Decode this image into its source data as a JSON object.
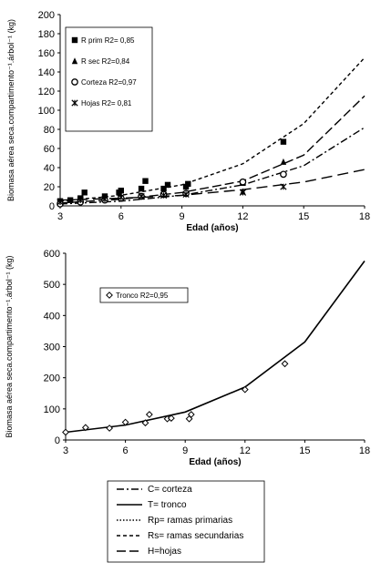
{
  "chart_data": [
    {
      "type": "scatter",
      "xlabel": "Edad (años)",
      "ylabel": "Biomasa aérea seca.compartimento⁻¹.árbol⁻¹ (kg)",
      "xlim": [
        3,
        18
      ],
      "ylim": [
        0,
        200
      ],
      "xticks": [
        "3",
        "6",
        "9",
        "12",
        "15",
        "18"
      ],
      "yticks": [
        "0",
        "20",
        "40",
        "60",
        "80",
        "100",
        "120",
        "140",
        "160",
        "180",
        "200"
      ],
      "legend_position": "top-left",
      "series": [
        {
          "name": "R prim  R2= 0,85",
          "marker": "square",
          "curve": "short-dash",
          "x": [
            3.0,
            3.5,
            4.0,
            4.2,
            5.2,
            5.9,
            6.0,
            7.0,
            7.2,
            8.1,
            8.3,
            9.2,
            9.3,
            12.0,
            14.0
          ],
          "y": [
            5,
            6,
            8,
            14,
            10,
            14,
            16,
            18,
            26,
            18,
            22,
            20,
            23,
            24,
            67
          ],
          "fit": {
            "x": [
              3,
              6,
              9,
              12,
              15,
              18
            ],
            "y": [
              5,
              11,
              22,
              44,
              86,
              155
            ]
          }
        },
        {
          "name": "R sec  R2=0,84",
          "marker": "triangle",
          "curve": "dash-dot",
          "x": [
            3.0,
            4.0,
            5.2,
            6.0,
            7.0,
            8.1,
            9.2,
            12.0,
            14.0
          ],
          "y": [
            3,
            5,
            7,
            9,
            10,
            12,
            14,
            15,
            46
          ],
          "fit": {
            "x": [
              3,
              6,
              9,
              12,
              15,
              18
            ],
            "y": [
              2,
              5,
              11,
              22,
              42,
              82
            ]
          }
        },
        {
          "name": "Corteza R2=0,97",
          "marker": "circle",
          "curve": "long-dash",
          "x": [
            3.0,
            4.0,
            5.2,
            6.0,
            7.0,
            8.1,
            9.2,
            12.0,
            14.0
          ],
          "y": [
            2,
            4,
            6,
            8,
            10,
            12,
            13,
            25,
            33
          ],
          "fit": {
            "x": [
              3,
              6,
              9,
              12,
              15,
              18
            ],
            "y": [
              3,
              7,
              14,
              26,
              53,
              115
            ]
          }
        },
        {
          "name": "Hojas  R2= 0,81",
          "marker": "star",
          "curve": "dash",
          "x": [
            3.0,
            4.0,
            5.2,
            6.0,
            7.0,
            8.1,
            9.2,
            12.0,
            14.0
          ],
          "y": [
            4,
            6,
            7,
            9,
            10,
            11,
            12,
            14,
            20
          ],
          "fit": {
            "x": [
              3,
              6,
              9,
              12,
              15,
              18
            ],
            "y": [
              6,
              8,
              11,
              17,
              25,
              38
            ]
          }
        }
      ]
    },
    {
      "type": "scatter",
      "xlabel": "Edad (años)",
      "ylabel": "Biomasa aérea seca.compartimento⁻¹.árbol⁻¹ (kg)",
      "xlim": [
        3,
        18
      ],
      "ylim": [
        0,
        600
      ],
      "xticks": [
        "3",
        "6",
        "9",
        "12",
        "15",
        "18"
      ],
      "yticks": [
        "0",
        "100",
        "200",
        "300",
        "400",
        "500",
        "600"
      ],
      "legend_position": "top-left",
      "series": [
        {
          "name": "Tronco R2=0,95",
          "marker": "diamond",
          "curve": "solid",
          "x": [
            3.0,
            4.0,
            5.2,
            6.0,
            7.0,
            7.2,
            8.1,
            8.3,
            9.2,
            9.3,
            12.0,
            14.0
          ],
          "y": [
            25,
            40,
            38,
            57,
            55,
            82,
            68,
            70,
            68,
            82,
            162,
            245
          ],
          "fit": {
            "x": [
              3,
              6,
              9,
              12,
              15,
              18
            ],
            "y": [
              25,
              48,
              90,
              170,
              315,
              575
            ]
          }
        }
      ]
    }
  ],
  "bottom_legend": [
    {
      "style": "dash-dot",
      "label": "C= corteza"
    },
    {
      "style": "solid",
      "label": "T= tronco"
    },
    {
      "style": "dotted",
      "label": "Rp= ramas primarias"
    },
    {
      "style": "short-dash",
      "label": "Rs= ramas secundarias"
    },
    {
      "style": "long-dash",
      "label": "H=hojas"
    }
  ]
}
